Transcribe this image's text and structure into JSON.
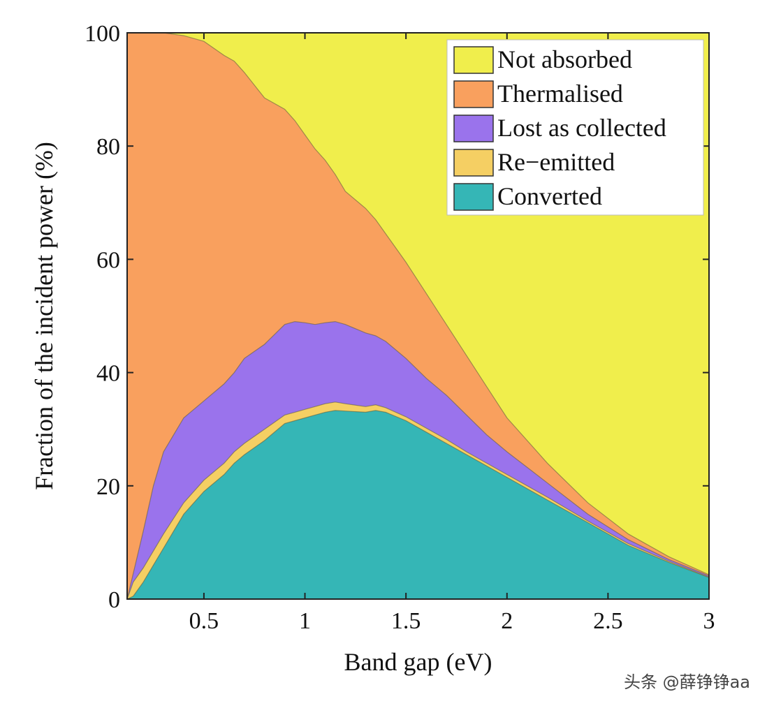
{
  "chart_data": {
    "type": "area",
    "stacked": true,
    "title": "",
    "xlabel": "Band gap (eV)",
    "ylabel": "Fraction of the incident power (%)",
    "xlim": [
      0.12,
      3.0
    ],
    "ylim": [
      0,
      100
    ],
    "xticks": [
      0.5,
      1,
      1.5,
      2,
      2.5,
      3
    ],
    "xtick_labels": [
      "0.5",
      "1",
      "1.5",
      "2",
      "2.5",
      "3"
    ],
    "yticks": [
      0,
      20,
      40,
      60,
      80,
      100
    ],
    "ytick_labels": [
      "0",
      "20",
      "40",
      "60",
      "80",
      "100"
    ],
    "legend_position": "top-right",
    "x": [
      0.12,
      0.15,
      0.2,
      0.25,
      0.3,
      0.4,
      0.5,
      0.6,
      0.65,
      0.7,
      0.8,
      0.9,
      0.95,
      1.0,
      1.05,
      1.1,
      1.15,
      1.2,
      1.3,
      1.35,
      1.4,
      1.5,
      1.6,
      1.7,
      1.8,
      1.9,
      2.0,
      2.2,
      2.4,
      2.6,
      2.8,
      3.0
    ],
    "series": [
      {
        "name": "Converted",
        "color": "#35b6b6",
        "upper": [
          0,
          0.5,
          3,
          6,
          9,
          15,
          19,
          22,
          24,
          25.5,
          28,
          31,
          31.5,
          32,
          32.5,
          33,
          33.3,
          33.2,
          33,
          33.3,
          33,
          31.5,
          29.5,
          27.5,
          25.5,
          23.5,
          21.5,
          17.5,
          13.5,
          9.5,
          6.5,
          3.8
        ]
      },
      {
        "name": "Re-emitted",
        "color": "#f5cf63",
        "upper": [
          0,
          3,
          5.5,
          8.5,
          11.5,
          17,
          21,
          24,
          26,
          27.5,
          30,
          32.5,
          33,
          33.5,
          34,
          34.5,
          34.8,
          34.5,
          34,
          34.3,
          33.8,
          32.2,
          30.2,
          28.2,
          26,
          24,
          22,
          18,
          13.8,
          9.8,
          6.7,
          3.9
        ]
      },
      {
        "name": "Lost as collected",
        "color": "#9a73ec",
        "upper": [
          0,
          4.5,
          12,
          20,
          26,
          32,
          35,
          38,
          40,
          42.5,
          45,
          48.5,
          49,
          48.8,
          48.5,
          48.8,
          49,
          48.5,
          47,
          46.5,
          45.5,
          42.5,
          39,
          36,
          32.5,
          29,
          26,
          20.5,
          15,
          10.5,
          7,
          4.1
        ]
      },
      {
        "name": "Thermalised",
        "color": "#f9a05e",
        "upper": [
          100,
          100,
          100,
          100,
          100,
          99.5,
          98.5,
          96,
          95,
          93,
          88.5,
          86.5,
          84.5,
          82,
          79.5,
          77.5,
          75,
          72,
          69,
          67,
          64.5,
          59.5,
          54,
          48.5,
          43,
          37.5,
          32,
          24,
          17,
          11.5,
          7.5,
          4.3
        ]
      },
      {
        "name": "Not absorbed",
        "color": "#f0ee4c",
        "upper": [
          100,
          100,
          100,
          100,
          100,
          100,
          100,
          100,
          100,
          100,
          100,
          100,
          100,
          100,
          100,
          100,
          100,
          100,
          100,
          100,
          100,
          100,
          100,
          100,
          100,
          100,
          100,
          100,
          100,
          100,
          100,
          100
        ]
      }
    ],
    "legend_order": [
      "Not absorbed",
      "Thermalised",
      "Lost as collected",
      "Re−emitted",
      "Converted"
    ]
  },
  "watermark": "头条 @薛铮铮aa"
}
